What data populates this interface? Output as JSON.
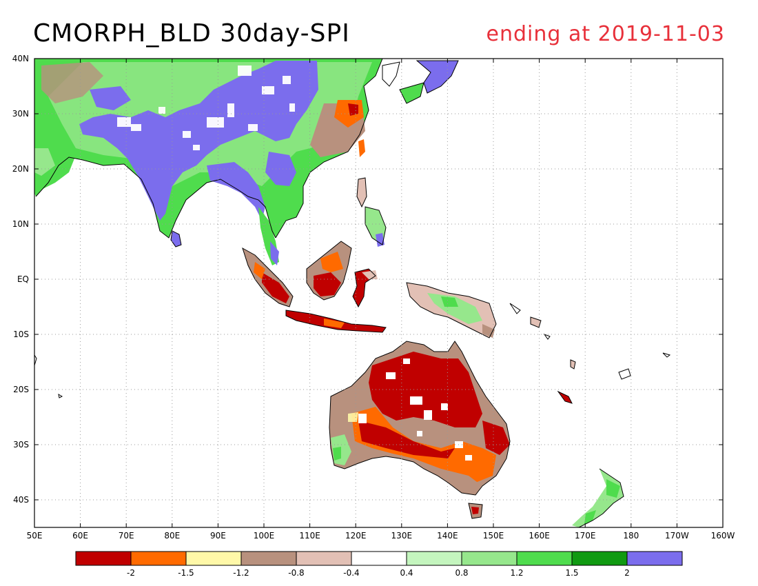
{
  "title": "CMORPH_BLD 30day-SPI",
  "subtitle": "ending at 2019-11-03",
  "colors": {
    "title": "#000000",
    "subtitle": "#e8303a"
  },
  "axes": {
    "lat_ticks": [
      "40N",
      "30N",
      "20N",
      "10N",
      "EQ",
      "10S",
      "20S",
      "30S",
      "40S"
    ],
    "lon_ticks": [
      "50E",
      "60E",
      "70E",
      "80E",
      "90E",
      "100E",
      "110E",
      "120E",
      "130E",
      "140E",
      "150E",
      "160E",
      "170E",
      "180",
      "170W",
      "160W"
    ],
    "grid": "dotted"
  },
  "legend": {
    "placement": "bottom",
    "colors": [
      "#c00000",
      "#ff6a00",
      "#fff8a8",
      "#b8917e",
      "#e2c0b5",
      "#ffffff",
      "#c4f5be",
      "#96e78c",
      "#4fdc4d",
      "#109a12",
      "#7b6ded"
    ],
    "labels": [
      "-2",
      "-1.5",
      "-1.2",
      "-0.8",
      "-0.4",
      "0.4",
      "0.8",
      "1.2",
      "1.5",
      "2"
    ]
  },
  "regions": [
    {
      "name": "South Asia and China",
      "tone": "wet"
    },
    {
      "name": "Maritime Continent",
      "tone": "dry"
    },
    {
      "name": "Australia",
      "tone": "dry"
    },
    {
      "name": "New Zealand",
      "tone": "wet"
    }
  ]
}
